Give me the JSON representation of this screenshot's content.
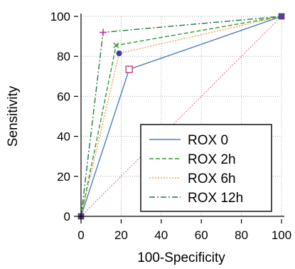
{
  "chart_data": {
    "type": "line",
    "title": "",
    "xlabel": "100-Specificity",
    "ylabel": "Sensitivity",
    "xlim": [
      0,
      100
    ],
    "ylim": [
      0,
      100
    ],
    "x_ticks": [
      "0",
      "20",
      "40",
      "60",
      "80",
      "100"
    ],
    "y_ticks": [
      "0",
      "20",
      "40",
      "60",
      "80",
      "100"
    ],
    "grid": true,
    "legend_position": "bottom-right",
    "reference_line": {
      "points": [
        [
          0,
          0
        ],
        [
          100,
          100
        ]
      ],
      "color": "#e08080",
      "style": "dotted"
    },
    "series": [
      {
        "name": "ROX 0",
        "color": "#4a7fc1",
        "dash": "",
        "marker": "open-square",
        "marker_color": "#c0407a",
        "points": [
          [
            0,
            0
          ],
          [
            24,
            73.5
          ],
          [
            100,
            100
          ]
        ],
        "highlight": 1
      },
      {
        "name": "ROX 2h",
        "color": "#2f9a2f",
        "dash": "6,3",
        "marker": "x",
        "marker_color": "#2f9a2f",
        "points": [
          [
            0,
            0
          ],
          [
            17.5,
            85.5
          ],
          [
            100,
            100
          ]
        ],
        "highlight": 1
      },
      {
        "name": "ROX 6h",
        "color": "#f0a050",
        "dash": "2,2",
        "marker": "filled-circle",
        "marker_color": "#3a3aa0",
        "points": [
          [
            0,
            0
          ],
          [
            19,
            81.5
          ],
          [
            100,
            100
          ]
        ],
        "highlight": 1
      },
      {
        "name": "ROX 12h",
        "color": "#1f7a3f",
        "dash": "8,3,2,3",
        "marker": "plus",
        "marker_color": "#c020a0",
        "points": [
          [
            0,
            0
          ],
          [
            11,
            92
          ],
          [
            100,
            100
          ]
        ],
        "highlight": 1
      }
    ],
    "endpoint_marker_color": "#7030a0"
  }
}
